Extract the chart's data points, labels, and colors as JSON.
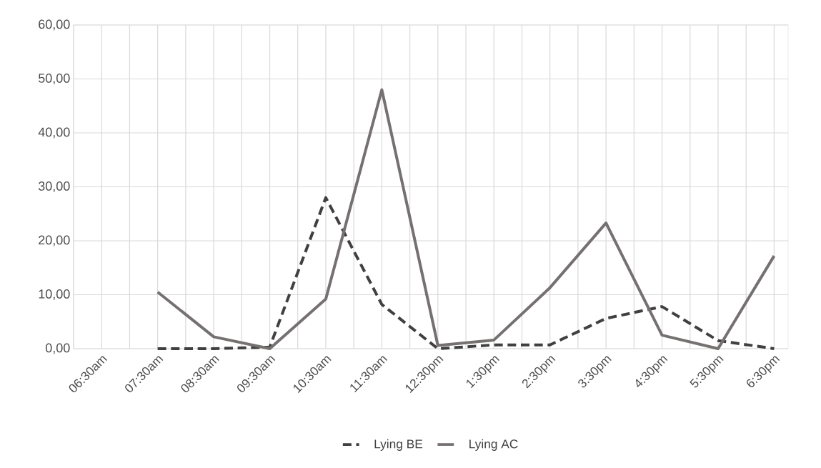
{
  "chart_data": {
    "type": "line",
    "categories": [
      "06:30am",
      "07:30am",
      "08:30am",
      "09:30am",
      "10:30am",
      "11:30am",
      "12:30pm",
      "1:30pm",
      "2:30pm",
      "3:30pm",
      "4:30pm",
      "5:30pm",
      "6:30pm"
    ],
    "series": [
      {
        "name": "Lying BE",
        "color": "#404040",
        "line_style": "dashed",
        "values": [
          null,
          0,
          0,
          0.3,
          28,
          8.2,
          0,
          0.7,
          0.7,
          5.6,
          7.8,
          1.5,
          0
        ]
      },
      {
        "name": "Lying AC",
        "color": "#767171",
        "line_style": "solid",
        "values": [
          null,
          10.5,
          2.2,
          0,
          9.2,
          48,
          0.6,
          1.6,
          11.3,
          23.3,
          2.5,
          0,
          17.2
        ]
      }
    ],
    "ylim": [
      0,
      60
    ],
    "yticks": [
      {
        "value": 0,
        "label": "0,00"
      },
      {
        "value": 10,
        "label": "10,00"
      },
      {
        "value": 20,
        "label": "20,00"
      },
      {
        "value": 30,
        "label": "30,00"
      },
      {
        "value": 40,
        "label": "40,00"
      },
      {
        "value": 50,
        "label": "50,00"
      },
      {
        "value": 60,
        "label": "60,00"
      }
    ],
    "grid": true,
    "legend": "bottom",
    "marker": "none"
  }
}
